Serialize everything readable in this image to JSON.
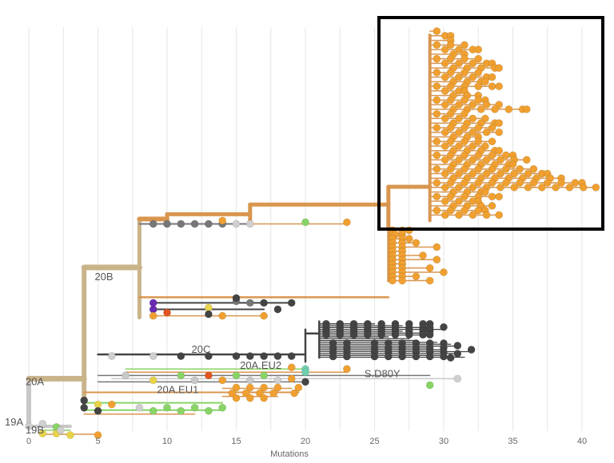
{
  "chart_data": {
    "type": "phylogenetic-tree",
    "xlabel": "Mutations",
    "xlim": [
      0,
      41
    ],
    "xticks": [
      0,
      5,
      10,
      15,
      20,
      25,
      30,
      35,
      40
    ],
    "xtick_labels": [
      "0",
      "5",
      "10",
      "15",
      "20",
      "25",
      "30",
      "35",
      "40"
    ],
    "grid": true,
    "highlight_box": "top-right cluster around 29-41 mutations",
    "clade_labels": [
      {
        "text": "19A",
        "x": 0,
        "row": 49
      },
      {
        "text": "19B",
        "x": 1.5,
        "row": 50
      },
      {
        "text": "20A",
        "x": 1.5,
        "row": 44
      },
      {
        "text": "20B",
        "x": 6.5,
        "row": 31
      },
      {
        "text": "20C",
        "x": 13.5,
        "row": 40
      },
      {
        "text": "20A.EU2",
        "x": 17,
        "row": 42
      },
      {
        "text": "20A.EU1",
        "x": 11,
        "row": 45
      },
      {
        "text": "S.D80Y",
        "x": 26,
        "row": 43
      }
    ],
    "colors": {
      "orange": "#f0a030",
      "orange_branch": "#d9964f",
      "tan": "#c9b48a",
      "gray": "#c8c8c8",
      "dark": "#444444",
      "mid": "#777777",
      "green": "#88d466",
      "yellow": "#e8d44a",
      "red": "#e05520",
      "purple": "#6a2bb0",
      "teal": "#6fd0b0"
    },
    "clusters": [
      {
        "name": "boxed-orange",
        "color": "orange",
        "parent_x": 29,
        "tips": [
          29.5,
          30.5,
          30.5,
          31.5,
          32.5,
          31.5,
          32.5,
          33.5,
          34,
          32.5,
          33.5,
          33,
          34,
          31.5,
          32.5,
          33,
          34,
          36,
          31.5,
          33,
          34,
          33.5,
          34,
          32.5,
          33.5,
          33,
          34,
          35,
          36,
          35,
          36.5,
          37.5,
          38.5,
          40,
          41,
          33,
          34,
          32.5,
          33.5,
          33,
          34
        ]
      },
      {
        "name": "mid-orange",
        "color": "orange",
        "parent_x": 26,
        "tips": [
          27.5,
          26.5,
          27.5,
          28,
          29.5,
          27,
          28.5,
          29.5,
          27,
          29,
          30,
          28,
          29
        ]
      },
      {
        "name": "dark-20C",
        "color": "dark",
        "parent_x": 21,
        "tips": [
          25,
          27,
          29,
          30,
          27,
          28.5,
          29,
          26,
          27.5,
          28,
          29.5,
          30.5,
          31,
          29,
          30,
          32,
          31,
          30,
          31.5
        ]
      },
      {
        "name": "20B-upper",
        "color": "mid",
        "parent_x": 8,
        "tips": [
          9,
          10,
          11,
          12,
          13,
          14,
          15,
          16
        ]
      },
      {
        "name": "20B-lower",
        "color": "dark",
        "parent_x": 8,
        "tips": [
          9,
          10,
          13,
          14,
          15,
          16,
          17,
          18,
          19
        ]
      },
      {
        "name": "20A.EU1",
        "color": "orange",
        "parent_x": 14,
        "tips": [
          15,
          16,
          17,
          18,
          19,
          19.5
        ]
      },
      {
        "name": "green-lower",
        "color": "green",
        "parent_x": 4,
        "tips": [
          5,
          6,
          8,
          10,
          11,
          12,
          13,
          14
        ]
      },
      {
        "name": "19B",
        "color": "yellow",
        "parent_x": 1,
        "tips": [
          2,
          3,
          5
        ]
      }
    ]
  }
}
